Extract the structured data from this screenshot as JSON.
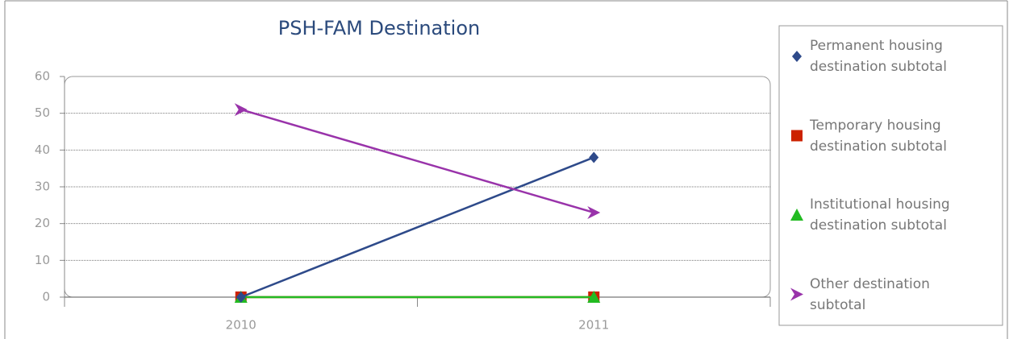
{
  "chart_data": {
    "type": "line",
    "title": "PSH-FAM Destination",
    "categories": [
      "2010",
      "2011"
    ],
    "series": [
      {
        "name": "Permanent housing destination subtotal",
        "color": "#2e4a8a",
        "marker": "diamond",
        "values": [
          0,
          38
        ]
      },
      {
        "name": "Temporary housing destination subtotal",
        "color": "#cc2200",
        "marker": "square",
        "values": [
          0,
          0
        ]
      },
      {
        "name": "Institutional housing destination subtotal",
        "color": "#22bb22",
        "marker": "triangle",
        "values": [
          0,
          0
        ]
      },
      {
        "name": "Other destination subtotal",
        "color": "#9933aa",
        "marker": "arrow",
        "values": [
          51,
          23
        ]
      }
    ],
    "ylim": [
      0,
      60
    ],
    "yticks": [
      0,
      10,
      20,
      30,
      40,
      50,
      60
    ],
    "grid": true,
    "legend": "right"
  }
}
